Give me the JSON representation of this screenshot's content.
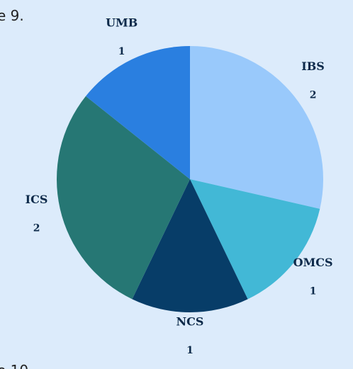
{
  "page_text": [
    "e 9.",
    "e 10"
  ],
  "chart_data": {
    "type": "pie",
    "categories": [
      "IBS",
      "OMCS",
      "NCS",
      "ICS",
      "UMB"
    ],
    "values": [
      2,
      1,
      1,
      2,
      1
    ],
    "colors": [
      "#99c9fb",
      "#42b8d6",
      "#073d68",
      "#267774",
      "#2a7fe0"
    ]
  }
}
